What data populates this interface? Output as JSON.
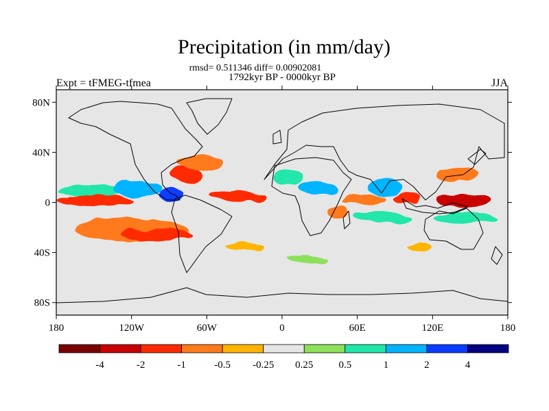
{
  "title": "Precipitation (in mm/day)",
  "stats_line": "rmsd= 0.511346 diff= 0.00902081",
  "period_line": "1792kyr BP - 0000kyr BP",
  "left_label": "Expt = tFMEG-tfmea",
  "right_label": "JJA",
  "map": {
    "projection": "cylindrical-equidistant",
    "lon_range": [
      -180,
      180
    ],
    "lat_range": [
      -90,
      90
    ],
    "background_color": "#e6e6e6",
    "coastline_color": "#000000",
    "lat_ticks": [
      {
        "value": 80,
        "label": "80N"
      },
      {
        "value": 40,
        "label": "40N"
      },
      {
        "value": 0,
        "label": "0"
      },
      {
        "value": -40,
        "label": "40S"
      },
      {
        "value": -80,
        "label": "80S"
      }
    ],
    "lon_ticks": [
      {
        "value": -180,
        "label": "180"
      },
      {
        "value": -120,
        "label": "120W"
      },
      {
        "value": -60,
        "label": "60W"
      },
      {
        "value": 0,
        "label": "0"
      },
      {
        "value": 60,
        "label": "60E"
      },
      {
        "value": 120,
        "label": "120E"
      },
      {
        "value": 180,
        "label": "180"
      }
    ]
  },
  "colorbar": {
    "colors": [
      "#7a0000",
      "#c80000",
      "#ff2a00",
      "#ff7a1a",
      "#ffb400",
      "#e6e6e6",
      "#8ce05a",
      "#20e6aa",
      "#00b4ff",
      "#0a3cff",
      "#000080"
    ],
    "labels": [
      "-4",
      "-2",
      "-1",
      "-0.5",
      "-0.25",
      "0.25",
      "0.5",
      "1",
      "2",
      "4"
    ]
  },
  "chart_data": {
    "type": "heatmap",
    "title": "Precipitation (in mm/day)",
    "subtitle": "1792kyr BP - 0000kyr BP",
    "levels": [
      -4,
      -2,
      -1,
      -0.5,
      -0.25,
      0.25,
      0.5,
      1,
      2,
      4
    ],
    "fields": [
      {
        "lon": -150,
        "lat": 2,
        "rlon": 30,
        "rlat": 5,
        "value": -1.5
      },
      {
        "lon": -120,
        "lat": -22,
        "rlon": 45,
        "rlat": 9,
        "value": -0.7
      },
      {
        "lon": -100,
        "lat": -26,
        "rlon": 28,
        "rlat": 5,
        "value": -1.6
      },
      {
        "lon": -150,
        "lat": 10,
        "rlon": 30,
        "rlat": 4,
        "value": 0.8
      },
      {
        "lon": -115,
        "lat": 11,
        "rlon": 20,
        "rlat": 6,
        "value": 1.2
      },
      {
        "lon": -88,
        "lat": 6,
        "rlon": 10,
        "rlat": 5,
        "value": 2.5
      },
      {
        "lon": -76,
        "lat": 22,
        "rlon": 12,
        "rlat": 6,
        "value": -1.2
      },
      {
        "lon": -65,
        "lat": 32,
        "rlon": 18,
        "rlat": 6,
        "value": -0.8
      },
      {
        "lon": -35,
        "lat": 5,
        "rlon": 22,
        "rlat": 4,
        "value": -1.2
      },
      {
        "lon": 5,
        "lat": 20,
        "rlon": 12,
        "rlat": 7,
        "value": 0.7
      },
      {
        "lon": 28,
        "lat": 12,
        "rlon": 15,
        "rlat": 5,
        "value": 1.4
      },
      {
        "lon": 45,
        "lat": -8,
        "rlon": 8,
        "rlat": 6,
        "value": -0.8
      },
      {
        "lon": 65,
        "lat": 2,
        "rlon": 18,
        "rlat": 4,
        "value": -0.6
      },
      {
        "lon": 82,
        "lat": 12,
        "rlon": 14,
        "rlat": 7,
        "value": 1.8
      },
      {
        "lon": 100,
        "lat": 3,
        "rlon": 12,
        "rlat": 4,
        "value": -1.6
      },
      {
        "lon": 145,
        "lat": 2,
        "rlon": 22,
        "rlat": 6,
        "value": -2.5
      },
      {
        "lon": 140,
        "lat": 22,
        "rlon": 18,
        "rlat": 5,
        "value": -0.8
      },
      {
        "lon": 80,
        "lat": -12,
        "rlon": 22,
        "rlat": 4,
        "value": 0.6
      },
      {
        "lon": 145,
        "lat": -12,
        "rlon": 25,
        "rlat": 4,
        "value": 0.9
      },
      {
        "lon": -30,
        "lat": -35,
        "rlon": 15,
        "rlat": 3,
        "value": -0.4
      },
      {
        "lon": 20,
        "lat": -45,
        "rlon": 15,
        "rlat": 3,
        "value": 0.4
      },
      {
        "lon": 110,
        "lat": -36,
        "rlon": 10,
        "rlat": 3,
        "value": -0.4
      }
    ]
  }
}
